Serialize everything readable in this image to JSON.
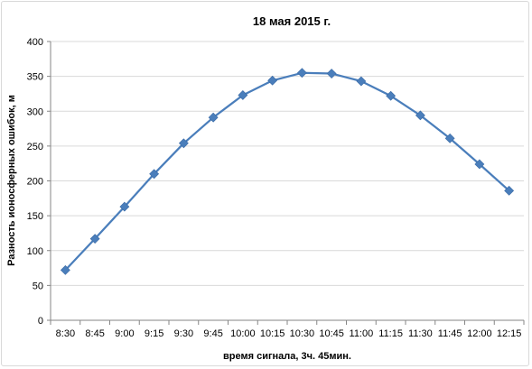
{
  "chart_data": {
    "type": "line",
    "title": "18 мая 2015 г.",
    "xlabel": "время сигнала, 3ч. 45мин.",
    "ylabel": "Разность ионосферных ошибок, м",
    "categories": [
      "8:30",
      "8:45",
      "9:00",
      "9:15",
      "9:30",
      "9:45",
      "10:00",
      "10:15",
      "10:30",
      "10:45",
      "11:00",
      "11:15",
      "11:30",
      "11:45",
      "12:00",
      "12:15"
    ],
    "series": [
      {
        "values": [
          72,
          117,
          163,
          210,
          254,
          291,
          323,
          344,
          355,
          354,
          343,
          322,
          294,
          261,
          224,
          186
        ]
      }
    ],
    "ylim": [
      0,
      400
    ],
    "yticks": [
      0,
      50,
      100,
      150,
      200,
      250,
      300,
      350,
      400
    ],
    "grid": true,
    "legend": "none",
    "colors": {
      "line": "#4a7ebb",
      "marker": "#4a7ebb",
      "grid": "#d9d9d9",
      "axis": "#868686"
    }
  }
}
